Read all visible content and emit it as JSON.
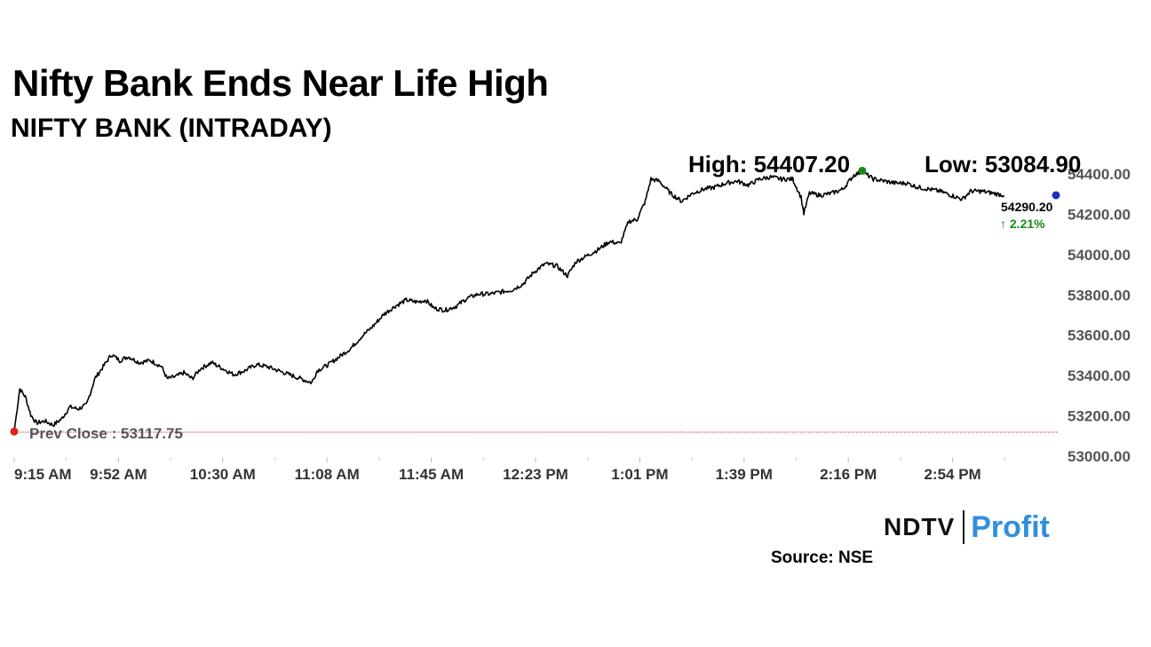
{
  "title": "Nifty Bank Ends Near Life High",
  "subtitle": "NIFTY BANK (INTRADAY)",
  "source": "Source: NSE",
  "logo": {
    "left": "NDTV",
    "right": "Profit"
  },
  "colors": {
    "line": "#000000",
    "high_dot": "#1a8a1a",
    "prev_dot": "#e0201c",
    "last_dot": "#1f2fbf",
    "change": "#1a8a1a",
    "prev_line": "#c03030",
    "logo_profit": "#2f8fde"
  },
  "chart_data": {
    "type": "line",
    "title": "NIFTY BANK (INTRADAY)",
    "x_ticks": [
      "9:15 AM",
      "9:52 AM",
      "10:30 AM",
      "11:08 AM",
      "11:45 AM",
      "12:23 PM",
      "1:01 PM",
      "1:39 PM",
      "2:16 PM",
      "2:54 PM"
    ],
    "y_ticks": [
      "53000.00",
      "53200.00",
      "53400.00",
      "53600.00",
      "53800.00",
      "54000.00",
      "54200.00",
      "54400.00"
    ],
    "ylim": [
      53000,
      54400
    ],
    "xlim": [
      "9:15 AM",
      "3:30 PM"
    ],
    "high_label": "High: 54407.20",
    "low_label": "Low: 53084.90",
    "prev_close_label": "Prev Close : 53117.75",
    "prev_close": 53117.75,
    "last_value_label": "54290.20",
    "change_label": "↑ 2.21%",
    "last_value": 54290.2,
    "high_time": "2:20 PM",
    "high_value": 54407.2,
    "series": [
      {
        "points": [
          [
            "9:15",
            53118
          ],
          [
            "9:17",
            53330
          ],
          [
            "9:19",
            53290
          ],
          [
            "9:21",
            53200
          ],
          [
            "9:23",
            53160
          ],
          [
            "9:26",
            53170
          ],
          [
            "9:29",
            53150
          ],
          [
            "9:32",
            53180
          ],
          [
            "9:35",
            53240
          ],
          [
            "9:38",
            53230
          ],
          [
            "9:41",
            53250
          ],
          [
            "9:44",
            53380
          ],
          [
            "9:47",
            53440
          ],
          [
            "9:50",
            53500
          ],
          [
            "9:53",
            53470
          ],
          [
            "9:56",
            53490
          ],
          [
            "10:00",
            53460
          ],
          [
            "10:04",
            53470
          ],
          [
            "10:08",
            53440
          ],
          [
            "10:10",
            53380
          ],
          [
            "10:13",
            53390
          ],
          [
            "10:16",
            53410
          ],
          [
            "10:19",
            53380
          ],
          [
            "10:22",
            53430
          ],
          [
            "10:26",
            53460
          ],
          [
            "10:30",
            53430
          ],
          [
            "10:34",
            53400
          ],
          [
            "10:38",
            53420
          ],
          [
            "10:42",
            53450
          ],
          [
            "10:46",
            53440
          ],
          [
            "10:50",
            53420
          ],
          [
            "10:54",
            53400
          ],
          [
            "10:58",
            53380
          ],
          [
            "11:02",
            53360
          ],
          [
            "11:04",
            53420
          ],
          [
            "11:08",
            53450
          ],
          [
            "11:10",
            53470
          ],
          [
            "11:13",
            53500
          ],
          [
            "11:16",
            53530
          ],
          [
            "11:20",
            53590
          ],
          [
            "11:24",
            53640
          ],
          [
            "11:28",
            53700
          ],
          [
            "11:32",
            53740
          ],
          [
            "11:36",
            53770
          ],
          [
            "11:40",
            53760
          ],
          [
            "11:43",
            53770
          ],
          [
            "11:46",
            53730
          ],
          [
            "11:50",
            53720
          ],
          [
            "11:54",
            53740
          ],
          [
            "11:58",
            53780
          ],
          [
            "12:02",
            53800
          ],
          [
            "12:06",
            53800
          ],
          [
            "12:10",
            53810
          ],
          [
            "12:14",
            53820
          ],
          [
            "12:18",
            53850
          ],
          [
            "12:22",
            53910
          ],
          [
            "12:26",
            53950
          ],
          [
            "12:30",
            53940
          ],
          [
            "12:34",
            53890
          ],
          [
            "12:37",
            53960
          ],
          [
            "12:41",
            53990
          ],
          [
            "12:45",
            54020
          ],
          [
            "12:49",
            54060
          ],
          [
            "12:53",
            54050
          ],
          [
            "12:56",
            54160
          ],
          [
            "12:59",
            54170
          ],
          [
            "13:02",
            54260
          ],
          [
            "13:04",
            54370
          ],
          [
            "13:07",
            54360
          ],
          [
            "13:11",
            54300
          ],
          [
            "13:15",
            54260
          ],
          [
            "13:19",
            54300
          ],
          [
            "13:23",
            54320
          ],
          [
            "13:27",
            54330
          ],
          [
            "13:31",
            54350
          ],
          [
            "13:35",
            54360
          ],
          [
            "13:39",
            54340
          ],
          [
            "13:43",
            54370
          ],
          [
            "13:47",
            54380
          ],
          [
            "13:51",
            54370
          ],
          [
            "13:55",
            54370
          ],
          [
            "13:58",
            54280
          ],
          [
            "13:59",
            54200
          ],
          [
            "14:01",
            54300
          ],
          [
            "14:05",
            54290
          ],
          [
            "14:09",
            54300
          ],
          [
            "14:13",
            54320
          ],
          [
            "14:17",
            54390
          ],
          [
            "14:20",
            54407
          ],
          [
            "14:24",
            54370
          ],
          [
            "14:28",
            54360
          ],
          [
            "14:32",
            54350
          ],
          [
            "14:36",
            54350
          ],
          [
            "14:40",
            54330
          ],
          [
            "14:44",
            54320
          ],
          [
            "14:48",
            54310
          ],
          [
            "14:52",
            54290
          ],
          [
            "14:56",
            54270
          ],
          [
            "14:59",
            54310
          ],
          [
            "15:03",
            54310
          ],
          [
            "15:07",
            54300
          ],
          [
            "15:11",
            54290
          ]
        ]
      }
    ]
  }
}
